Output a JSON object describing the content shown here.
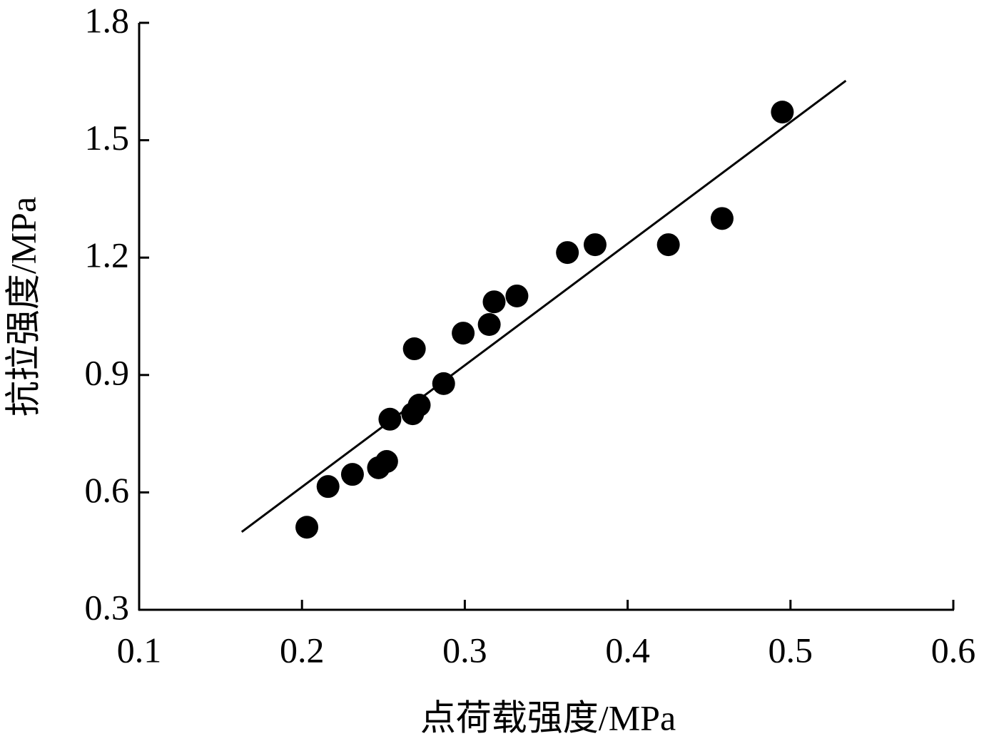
{
  "chart_data": {
    "type": "scatter",
    "xlabel": "点荷载强度/MPa",
    "ylabel": "抗拉强度/MPa",
    "x": [
      0.203,
      0.216,
      0.231,
      0.247,
      0.252,
      0.254,
      0.268,
      0.272,
      0.287,
      0.269,
      0.299,
      0.315,
      0.318,
      0.332,
      0.363,
      0.38,
      0.425,
      0.458,
      0.495
    ],
    "values": [
      0.511,
      0.615,
      0.646,
      0.663,
      0.679,
      0.787,
      0.801,
      0.823,
      0.878,
      0.967,
      1.007,
      1.029,
      1.087,
      1.102,
      1.213,
      1.233,
      1.233,
      1.3,
      1.572
    ],
    "color": "#000000",
    "fit": {
      "x": [
        0.163,
        0.534
      ],
      "y": [
        0.499,
        1.652
      ]
    },
    "xlim": [
      0.1,
      0.6
    ],
    "xticks": [
      0.1,
      0.2,
      0.3,
      0.4,
      0.5,
      0.6
    ],
    "ylim": [
      0.3,
      1.8
    ],
    "yticks": [
      0.3,
      0.6,
      0.9,
      1.2,
      1.5,
      1.8
    ]
  }
}
